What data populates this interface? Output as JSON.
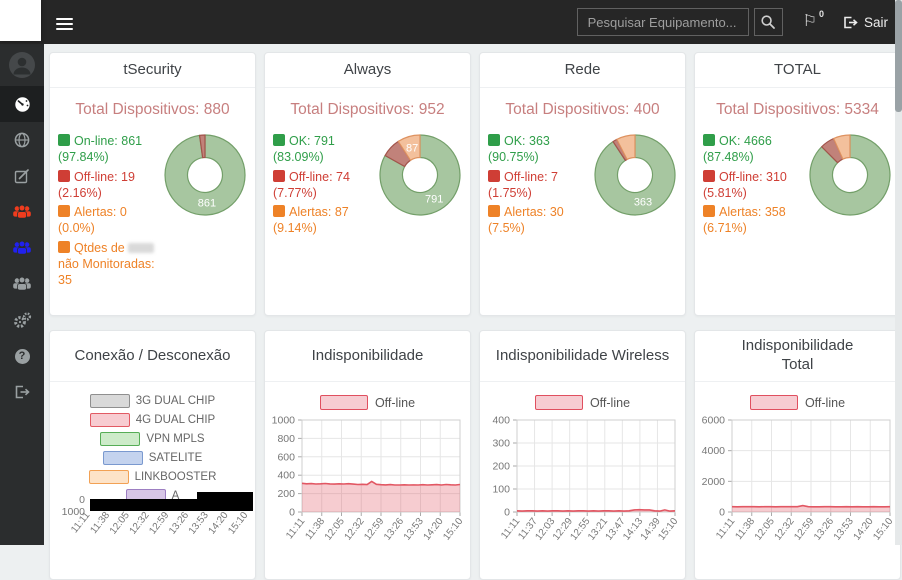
{
  "navbar": {
    "search_placeholder": "Pesquisar Equipamento...",
    "badge_count": "0",
    "logout_label": "Sair"
  },
  "icons": {
    "flag_glyph": "⚐",
    "question_glyph": "?"
  },
  "sidebar": {
    "items": [
      "user-avatar",
      "dashboard",
      "globe",
      "edit",
      "users-red",
      "users-blue",
      "users-gray",
      "settings",
      "help",
      "logout"
    ]
  },
  "theme": {
    "total_color": "#c77f7f",
    "legend_sq": {
      "ok": "#2f9e49",
      "off": "#cf3e35",
      "alert": "#ee8227"
    },
    "donut": {
      "ok": {
        "fill": "#a7c6a0",
        "stroke": "#739f69"
      },
      "off": {
        "fill": "#c1827a",
        "stroke": "#a2544b"
      },
      "alert": {
        "fill": "#f3c09c",
        "stroke": "#de9260"
      }
    },
    "line": {
      "stroke": "#e25763",
      "fill": "rgba(226,87,99,0.30)",
      "legend_fill": "#f7ccd2",
      "legend_stroke": "#e04f5f"
    }
  },
  "summary_cards": [
    {
      "title": "tSecurity",
      "total": "Total Dispositivos: 880",
      "legend": [
        {
          "text": "On-line: 861 (97.84%)",
          "type": "ok"
        },
        {
          "text": "Off-line: 19 (2.16%)",
          "type": "off"
        },
        {
          "text": "Alertas: 0 (0.0%)",
          "type": "alert"
        }
      ],
      "extra_legend": {
        "prefix": "Qtdes de",
        "suffix": "não Monitoradas: 35",
        "type": "alert"
      },
      "donut": {
        "segments": [
          {
            "pct": 97.84,
            "type": "ok",
            "label": "861"
          },
          {
            "pct": 2.16,
            "type": "off"
          },
          {
            "pct": 0,
            "type": "alert"
          }
        ]
      }
    },
    {
      "title": "Always",
      "total": "Total Dispositivos: 952",
      "legend": [
        {
          "text": "OK: 791 (83.09%)",
          "type": "ok"
        },
        {
          "text": "Off-line: 74 (7.77%)",
          "type": "off"
        },
        {
          "text": "Alertas: 87 (9.14%)",
          "type": "alert"
        }
      ],
      "donut": {
        "segments": [
          {
            "pct": 83.09,
            "type": "ok",
            "label": "791"
          },
          {
            "pct": 7.77,
            "type": "off"
          },
          {
            "pct": 9.14,
            "type": "alert",
            "label": "87"
          }
        ]
      }
    },
    {
      "title": "Rede",
      "total": "Total Dispositivos: 400",
      "legend": [
        {
          "text": "OK: 363 (90.75%)",
          "type": "ok"
        },
        {
          "text": "Off-line: 7 (1.75%)",
          "type": "off"
        },
        {
          "text": "Alertas: 30 (7.5%)",
          "type": "alert"
        }
      ],
      "donut": {
        "segments": [
          {
            "pct": 90.75,
            "type": "ok",
            "label": "363"
          },
          {
            "pct": 1.75,
            "type": "off"
          },
          {
            "pct": 7.5,
            "type": "alert"
          }
        ]
      }
    },
    {
      "title": "TOTAL",
      "total": "Total Dispositivos: 5334",
      "legend": [
        {
          "text": "OK: 4666 (87.48%)",
          "type": "ok"
        },
        {
          "text": "Off-line: 310 (5.81%)",
          "type": "off"
        },
        {
          "text": "Alertas: 358 (6.71%)",
          "type": "alert"
        }
      ],
      "donut": {
        "segments": [
          {
            "pct": 87.48,
            "type": "ok"
          },
          {
            "pct": 5.81,
            "type": "off"
          },
          {
            "pct": 6.71,
            "type": "alert"
          }
        ]
      }
    }
  ],
  "time_charts": [
    {
      "title": "Conexão / Desconexão",
      "legend": [
        {
          "label": "3G DUAL CHIP",
          "fill": "#d9d9d9",
          "stroke": "#8f8f8f"
        },
        {
          "label": "4G DUAL CHIP",
          "fill": "#f7ccd1",
          "stroke": "#e25a64"
        },
        {
          "label": "VPN MPLS",
          "fill": "#cdebc9",
          "stroke": "#56ad56"
        },
        {
          "label": "SATELITE",
          "fill": "#c4d3ee",
          "stroke": "#7a99cf"
        },
        {
          "label": "LINKBOOSTER",
          "fill": "#fde3c8",
          "stroke": "#f2a154"
        },
        {
          "label": "A",
          "fill": "#d7c6e6",
          "stroke": "#9d7fc2"
        }
      ],
      "y_labels": [
        "0",
        "1000"
      ],
      "x_labels": [
        "11:11",
        "11:38",
        "12:05",
        "12:32",
        "12:59",
        "13:26",
        "13:53",
        "14:20",
        "15:10"
      ]
    },
    {
      "title": "Indisponibilidade",
      "legend_label": "Off-line",
      "ymax": 1000,
      "yticks": [
        0,
        200,
        400,
        600,
        800,
        1000
      ],
      "x_labels": [
        "11:11",
        "11:38",
        "12:05",
        "12:32",
        "12:59",
        "13:26",
        "13:53",
        "14:20",
        "15:10"
      ],
      "values": [
        312,
        306,
        309,
        304,
        307,
        310,
        305,
        303,
        307,
        304,
        308,
        303,
        299,
        301,
        298,
        332,
        301,
        297,
        295,
        298,
        294,
        293,
        296,
        293,
        295,
        294,
        297,
        293,
        296,
        298,
        294,
        299,
        296,
        294,
        299
      ]
    },
    {
      "title": "Indisponibilidade Wireless",
      "legend_label": "Off-line",
      "ymax": 400,
      "yticks": [
        0,
        100,
        200,
        300,
        400
      ],
      "x_labels": [
        "11:11",
        "11:37",
        "12:03",
        "12:29",
        "12:55",
        "13:21",
        "13:47",
        "14:13",
        "14:39",
        "15:10"
      ],
      "values": [
        5,
        4,
        5,
        5,
        4,
        5,
        4,
        5,
        5,
        4,
        5,
        4,
        5,
        5,
        4,
        5,
        4,
        5,
        5,
        4,
        5,
        4,
        5,
        9,
        10,
        9,
        9,
        5,
        4,
        9,
        4,
        5
      ]
    },
    {
      "title": "Indisponibilidade Total",
      "legend_label": "Off-line",
      "ymax": 6000,
      "yticks": [
        0,
        2000,
        4000,
        6000
      ],
      "x_labels": [
        "11:11",
        "11:38",
        "12:05",
        "12:32",
        "12:59",
        "13:26",
        "13:53",
        "14:20",
        "15:10"
      ],
      "values": [
        345,
        342,
        346,
        343,
        345,
        342,
        346,
        344,
        342,
        345,
        343,
        346,
        344,
        415,
        344,
        341,
        339,
        343,
        345,
        341,
        340,
        343,
        341,
        344,
        342,
        341,
        344,
        342,
        341,
        344
      ]
    }
  ]
}
